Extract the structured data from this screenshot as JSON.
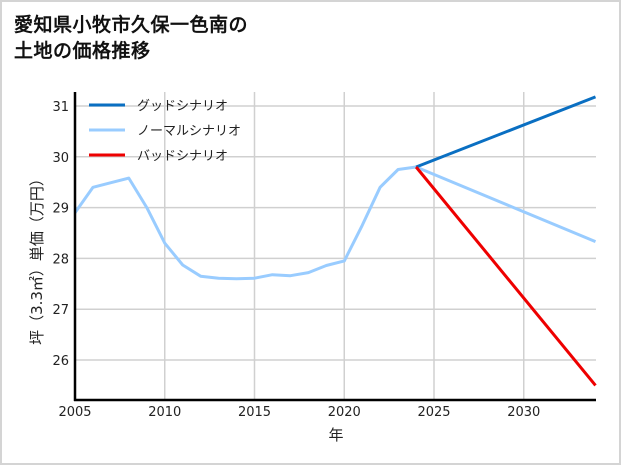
{
  "title_line1": "愛知県小牧市久保一色南の",
  "title_line2": "土地の価格推移",
  "chart_data": {
    "type": "line",
    "title": "愛知県小牧市久保一色南の土地の価格推移",
    "xlabel": "年",
    "ylabel": "坪（3.3㎡）単価（万円）",
    "xlim": [
      2005,
      2034
    ],
    "ylim": [
      25.3,
      31.5
    ],
    "xticks": [
      2005,
      2010,
      2015,
      2020,
      2025,
      2030
    ],
    "yticks": [
      26,
      27,
      28,
      29,
      30,
      31
    ],
    "grid": true,
    "legend_position": "upper left",
    "series": [
      {
        "name": "グッドシナリオ",
        "color": "#0a6fc2",
        "x": [
          2024,
          2034
        ],
        "values": [
          29.8,
          31.18
        ]
      },
      {
        "name": "ノーマルシナリオ",
        "color": "#99ccff",
        "x": [
          2005,
          2006,
          2007,
          2008,
          2009,
          2010,
          2011,
          2012,
          2013,
          2014,
          2015,
          2016,
          2017,
          2018,
          2019,
          2020,
          2021,
          2022,
          2023,
          2024,
          2034
        ],
        "values": [
          28.9,
          29.4,
          29.49,
          29.58,
          29.0,
          28.3,
          27.87,
          27.65,
          27.61,
          27.6,
          27.61,
          27.68,
          27.66,
          27.72,
          27.86,
          27.95,
          28.65,
          29.4,
          29.75,
          29.8,
          28.33
        ]
      },
      {
        "name": "バッドシナリオ",
        "color": "#ee0000",
        "x": [
          2024,
          2034
        ],
        "values": [
          29.8,
          25.5
        ]
      }
    ]
  }
}
